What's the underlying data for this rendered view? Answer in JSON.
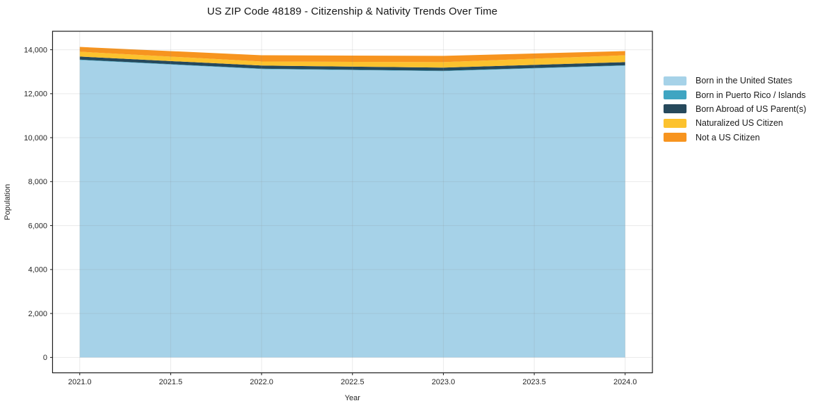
{
  "title": "US ZIP Code 48189 - Citizenship & Nativity Trends Over Time",
  "chart_data": {
    "type": "area",
    "stacked": true,
    "title": "US ZIP Code 48189 - Citizenship & Nativity Trends Over Time",
    "xlabel": "Year",
    "ylabel": "Population",
    "x": [
      2021,
      2022,
      2023,
      2024
    ],
    "series": [
      {
        "name": "Born in the United States",
        "color": "#a6d2e8",
        "values": [
          13530,
          13120,
          13025,
          13275
        ]
      },
      {
        "name": "Born in Puerto Rico / Islands",
        "color": "#3fa5c2",
        "values": [
          20,
          20,
          20,
          20
        ]
      },
      {
        "name": "Born Abroad of US Parent(s)",
        "color": "#26495c",
        "values": [
          140,
          140,
          140,
          140
        ]
      },
      {
        "name": "Naturalized US Citizen",
        "color": "#fcc22e",
        "values": [
          220,
          185,
          250,
          315
        ]
      },
      {
        "name": "Not a US Citizen",
        "color": "#f7941f",
        "values": [
          220,
          285,
          285,
          190
        ]
      }
    ],
    "x_ticks": [
      2021.0,
      2021.5,
      2022.0,
      2022.5,
      2023.0,
      2023.5,
      2024.0
    ],
    "x_tick_labels": [
      "2021.0",
      "2021.5",
      "2022.0",
      "2022.5",
      "2023.0",
      "2023.5",
      "2024.0"
    ],
    "y_ticks": [
      0,
      2000,
      4000,
      6000,
      8000,
      10000,
      12000,
      14000
    ],
    "y_tick_labels": [
      "0",
      "2,000",
      "4,000",
      "6,000",
      "8,000",
      "10,000",
      "12,000",
      "14,000"
    ],
    "xlim": [
      2020.85,
      2024.15
    ],
    "ylim": [
      -700,
      14840
    ],
    "grid": true,
    "legend_position": "right",
    "colors": {
      "frame": "#1a1a1a",
      "tick_label": "#262626",
      "grid": "#8a8a8a",
      "background": "#ffffff"
    }
  }
}
